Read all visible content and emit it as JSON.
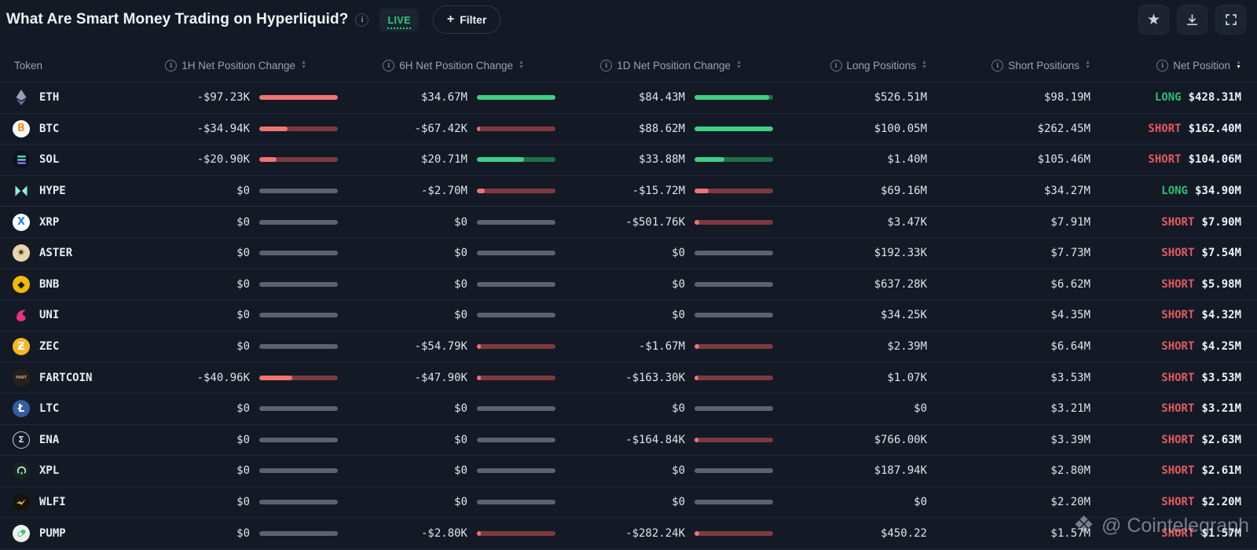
{
  "page": {
    "title": "What Are Smart Money Trading on Hyperliquid?",
    "live_badge": "LIVE",
    "filter_button": "+ Filter",
    "action_icons": [
      "star-icon",
      "download-icon",
      "fullscreen-icon"
    ],
    "watermark": "@ Cointelegraph"
  },
  "colors": {
    "background": "#141926",
    "positive_bar": "#3ecf85",
    "positive_track": "#20704a",
    "negative_bar": "#f07474",
    "negative_track": "#7c3a40",
    "zero_bar": "#5b6372",
    "long_text": "#2fbd72",
    "short_text": "#e25a5e",
    "live_green": "#2fcd7d"
  },
  "table": {
    "columns": [
      {
        "label": "Token",
        "info": false,
        "sortable": false,
        "sorted": null
      },
      {
        "label": "1H Net Position Change",
        "info": true,
        "sortable": true,
        "sorted": null
      },
      {
        "label": "6H Net Position Change",
        "info": true,
        "sortable": true,
        "sorted": null
      },
      {
        "label": "1D Net Position Change",
        "info": true,
        "sortable": true,
        "sorted": null
      },
      {
        "label": "Long Positions",
        "info": true,
        "sortable": true,
        "sorted": null
      },
      {
        "label": "Short Positions",
        "info": true,
        "sortable": true,
        "sorted": null
      },
      {
        "label": "Net Position",
        "info": true,
        "sortable": true,
        "sorted": "desc"
      }
    ],
    "rows": [
      {
        "token": "ETH",
        "icon": "eth-icon",
        "h1": {
          "text": "-$97.23K",
          "fill": 1,
          "dir": "neg"
        },
        "h6": {
          "text": "$34.67M",
          "fill": 1,
          "dir": "pos"
        },
        "d1": {
          "text": "$84.43M",
          "fill": 0.95,
          "dir": "pos"
        },
        "long": "$526.51M",
        "short": "$98.19M",
        "net_side": "LONG",
        "net_value": "$428.31M"
      },
      {
        "token": "BTC",
        "icon": "btc-icon",
        "h1": {
          "text": "-$34.94K",
          "fill": 0.36,
          "dir": "neg"
        },
        "h6": {
          "text": "-$67.42K",
          "fill": 0.04,
          "dir": "neg"
        },
        "d1": {
          "text": "$88.62M",
          "fill": 1,
          "dir": "pos"
        },
        "long": "$100.05M",
        "short": "$262.45M",
        "net_side": "SHORT",
        "net_value": "$162.40M"
      },
      {
        "token": "SOL",
        "icon": "sol-icon",
        "h1": {
          "text": "-$20.90K",
          "fill": 0.22,
          "dir": "neg"
        },
        "h6": {
          "text": "$20.71M",
          "fill": 0.6,
          "dir": "pos"
        },
        "d1": {
          "text": "$33.88M",
          "fill": 0.38,
          "dir": "pos"
        },
        "long": "$1.40M",
        "short": "$105.46M",
        "net_side": "SHORT",
        "net_value": "$104.06M"
      },
      {
        "token": "HYPE",
        "icon": "hype-icon",
        "h1": {
          "text": "$0",
          "fill": 0,
          "dir": "zero"
        },
        "h6": {
          "text": "-$2.70M",
          "fill": 0.1,
          "dir": "neg"
        },
        "d1": {
          "text": "-$15.72M",
          "fill": 0.18,
          "dir": "neg"
        },
        "long": "$69.16M",
        "short": "$34.27M",
        "net_side": "LONG",
        "net_value": "$34.90M"
      },
      {
        "token": "XRP",
        "icon": "xrp-icon",
        "h1": {
          "text": "$0",
          "fill": 0,
          "dir": "zero"
        },
        "h6": {
          "text": "$0",
          "fill": 0,
          "dir": "zero"
        },
        "d1": {
          "text": "-$501.76K",
          "fill": 0.06,
          "dir": "neg"
        },
        "long": "$3.47K",
        "short": "$7.91M",
        "net_side": "SHORT",
        "net_value": "$7.90M"
      },
      {
        "token": "ASTER",
        "icon": "aster-icon",
        "h1": {
          "text": "$0",
          "fill": 0,
          "dir": "zero"
        },
        "h6": {
          "text": "$0",
          "fill": 0,
          "dir": "zero"
        },
        "d1": {
          "text": "$0",
          "fill": 0,
          "dir": "zero"
        },
        "long": "$192.33K",
        "short": "$7.73M",
        "net_side": "SHORT",
        "net_value": "$7.54M"
      },
      {
        "token": "BNB",
        "icon": "bnb-icon",
        "h1": {
          "text": "$0",
          "fill": 0,
          "dir": "zero"
        },
        "h6": {
          "text": "$0",
          "fill": 0,
          "dir": "zero"
        },
        "d1": {
          "text": "$0",
          "fill": 0,
          "dir": "zero"
        },
        "long": "$637.28K",
        "short": "$6.62M",
        "net_side": "SHORT",
        "net_value": "$5.98M"
      },
      {
        "token": "UNI",
        "icon": "uni-icon",
        "h1": {
          "text": "$0",
          "fill": 0,
          "dir": "zero"
        },
        "h6": {
          "text": "$0",
          "fill": 0,
          "dir": "zero"
        },
        "d1": {
          "text": "$0",
          "fill": 0,
          "dir": "zero"
        },
        "long": "$34.25K",
        "short": "$4.35M",
        "net_side": "SHORT",
        "net_value": "$4.32M"
      },
      {
        "token": "ZEC",
        "icon": "zec-icon",
        "h1": {
          "text": "$0",
          "fill": 0,
          "dir": "zero"
        },
        "h6": {
          "text": "-$54.79K",
          "fill": 0.05,
          "dir": "neg"
        },
        "d1": {
          "text": "-$1.67M",
          "fill": 0.06,
          "dir": "neg"
        },
        "long": "$2.39M",
        "short": "$6.64M",
        "net_side": "SHORT",
        "net_value": "$4.25M"
      },
      {
        "token": "FARTCOIN",
        "icon": "fartcoin-icon",
        "h1": {
          "text": "-$40.96K",
          "fill": 0.42,
          "dir": "neg"
        },
        "h6": {
          "text": "-$47.90K",
          "fill": 0.05,
          "dir": "neg"
        },
        "d1": {
          "text": "-$163.30K",
          "fill": 0.05,
          "dir": "neg"
        },
        "long": "$1.07K",
        "short": "$3.53M",
        "net_side": "SHORT",
        "net_value": "$3.53M"
      },
      {
        "token": "LTC",
        "icon": "ltc-icon",
        "h1": {
          "text": "$0",
          "fill": 0,
          "dir": "zero"
        },
        "h6": {
          "text": "$0",
          "fill": 0,
          "dir": "zero"
        },
        "d1": {
          "text": "$0",
          "fill": 0,
          "dir": "zero"
        },
        "long": "$0",
        "short": "$3.21M",
        "net_side": "SHORT",
        "net_value": "$3.21M"
      },
      {
        "token": "ENA",
        "icon": "ena-icon",
        "h1": {
          "text": "$0",
          "fill": 0,
          "dir": "zero"
        },
        "h6": {
          "text": "$0",
          "fill": 0,
          "dir": "zero"
        },
        "d1": {
          "text": "-$164.84K",
          "fill": 0.05,
          "dir": "neg"
        },
        "long": "$766.00K",
        "short": "$3.39M",
        "net_side": "SHORT",
        "net_value": "$2.63M"
      },
      {
        "token": "XPL",
        "icon": "xpl-icon",
        "h1": {
          "text": "$0",
          "fill": 0,
          "dir": "zero"
        },
        "h6": {
          "text": "$0",
          "fill": 0,
          "dir": "zero"
        },
        "d1": {
          "text": "$0",
          "fill": 0,
          "dir": "zero"
        },
        "long": "$187.94K",
        "short": "$2.80M",
        "net_side": "SHORT",
        "net_value": "$2.61M"
      },
      {
        "token": "WLFI",
        "icon": "wlfi-icon",
        "h1": {
          "text": "$0",
          "fill": 0,
          "dir": "zero"
        },
        "h6": {
          "text": "$0",
          "fill": 0,
          "dir": "zero"
        },
        "d1": {
          "text": "$0",
          "fill": 0,
          "dir": "zero"
        },
        "long": "$0",
        "short": "$2.20M",
        "net_side": "SHORT",
        "net_value": "$2.20M"
      },
      {
        "token": "PUMP",
        "icon": "pump-icon",
        "h1": {
          "text": "$0",
          "fill": 0,
          "dir": "zero"
        },
        "h6": {
          "text": "-$2.80K",
          "fill": 0.05,
          "dir": "neg"
        },
        "d1": {
          "text": "-$282.24K",
          "fill": 0.06,
          "dir": "neg"
        },
        "long": "$450.22",
        "short": "$1.57M",
        "net_side": "SHORT",
        "net_value": "$1.57M"
      }
    ]
  }
}
